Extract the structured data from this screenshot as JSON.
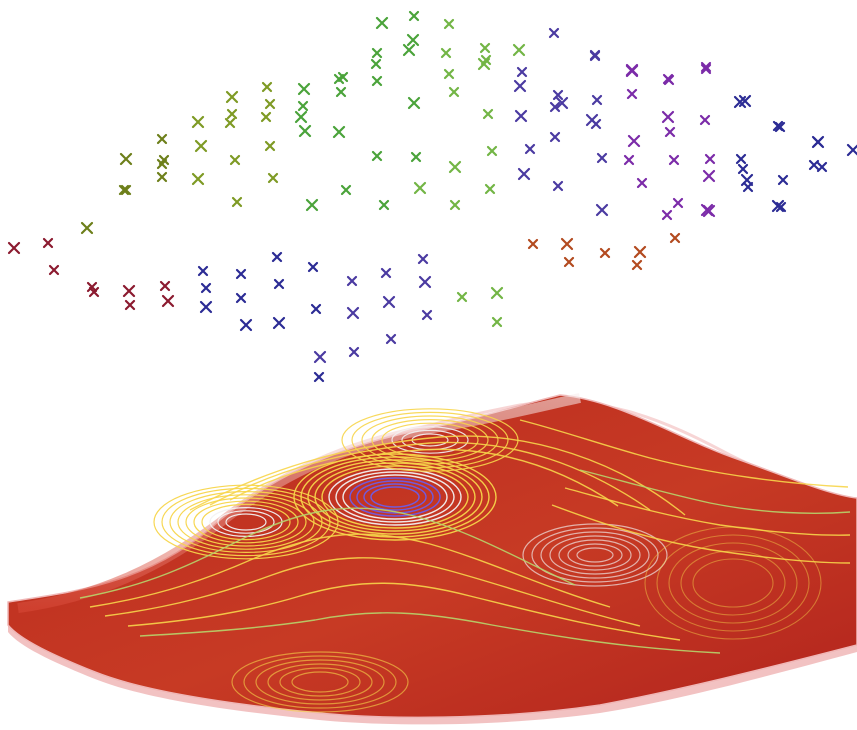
{
  "figure": {
    "scatter_layer": {
      "marker_symbol": "x",
      "palette": [
        "#8b1a2f",
        "#a11d3b",
        "#6d7f1a",
        "#7e9a24",
        "#4aa33a",
        "#72b545",
        "#8bd0d3",
        "#9aa2a9",
        "#2b2b94",
        "#4a3aa1",
        "#7b2ba8",
        "#b34a1f"
      ]
    },
    "surface_layer": {
      "surface_color": "#c12b1d",
      "edge_color": "#f2c5c5",
      "contour_colors": [
        "#f7d54a",
        "#f2f2f2",
        "#6d5de8",
        "#b7d56b"
      ]
    }
  }
}
